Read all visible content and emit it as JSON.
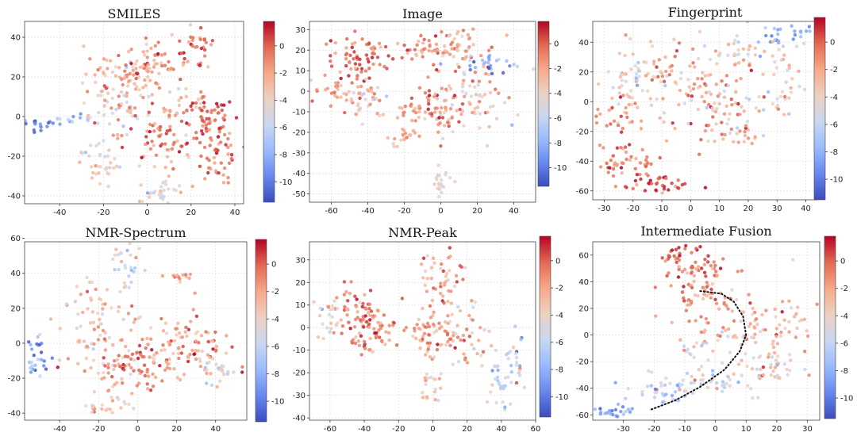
{
  "figure": {
    "colormap": [
      "#3b4cc0",
      "#6788ee",
      "#9abbff",
      "#c9d7f0",
      "#edd1c2",
      "#f7a889",
      "#e26952",
      "#b40426"
    ]
  },
  "chart_data": [
    {
      "type": "scatter",
      "title": "SMILES",
      "xticks": [
        -40,
        -20,
        0,
        20,
        40
      ],
      "yticks": [
        -40,
        -20,
        0,
        20,
        40
      ],
      "xlim": [
        -56,
        44
      ],
      "ylim": [
        -44,
        48
      ],
      "colorbar": {
        "min": -11.5,
        "max": 1.8,
        "ticks": [
          0,
          -2,
          -4,
          -6,
          -8,
          -10
        ]
      },
      "clusters": [
        {
          "cx": -50,
          "cy": -4,
          "sx": 5,
          "sy": 1.5,
          "n": 20,
          "c": -9.5,
          "cs": 1.2
        },
        {
          "cx": -33,
          "cy": -1,
          "sx": 4,
          "sy": 1.5,
          "n": 12,
          "c": -7.5,
          "cs": 1.2
        },
        {
          "cx": -15,
          "cy": 5,
          "sx": 8,
          "sy": 7,
          "n": 50,
          "c": -3.5,
          "cs": 2
        },
        {
          "cx": -10,
          "cy": 22,
          "sx": 9,
          "sy": 6,
          "n": 60,
          "c": -2,
          "cs": 1.5
        },
        {
          "cx": 5,
          "cy": 25,
          "sx": 7,
          "sy": 7,
          "n": 55,
          "c": -1.5,
          "cs": 1.5
        },
        {
          "cx": 22,
          "cy": 35,
          "sx": 4,
          "sy": 5,
          "n": 30,
          "c": -0.5,
          "cs": 1.2
        },
        {
          "cx": 28,
          "cy": -2,
          "sx": 6,
          "sy": 6,
          "n": 60,
          "c": 0,
          "cs": 1.2
        },
        {
          "cx": 32,
          "cy": -20,
          "sx": 5,
          "sy": 6,
          "n": 40,
          "c": -0.5,
          "cs": 1.2
        },
        {
          "cx": 5,
          "cy": -10,
          "sx": 8,
          "sy": 9,
          "n": 70,
          "c": -1,
          "cs": 1.5
        },
        {
          "cx": -20,
          "cy": -25,
          "sx": 6,
          "sy": 6,
          "n": 35,
          "c": -4,
          "cs": 1.8
        },
        {
          "cx": 5,
          "cy": -38,
          "sx": 6,
          "sy": 3,
          "n": 30,
          "c": -4.5,
          "cs": 1.5
        },
        {
          "cx": 20,
          "cy": 10,
          "sx": 5,
          "sy": 5,
          "n": 25,
          "c": -2,
          "cs": 1.5
        }
      ],
      "curve": []
    },
    {
      "type": "scatter",
      "title": "Image",
      "xticks": [
        -60,
        -40,
        -20,
        0,
        20,
        40
      ],
      "yticks": [
        -50,
        -40,
        -30,
        -20,
        -10,
        0,
        10,
        20,
        30
      ],
      "xlim": [
        -72,
        52
      ],
      "ylim": [
        -54,
        34
      ],
      "colorbar": {
        "min": -11.5,
        "max": 1.8,
        "ticks": [
          0,
          -2,
          -4,
          -6,
          -8,
          -10
        ]
      },
      "clusters": [
        {
          "cx": -45,
          "cy": 15,
          "sx": 8,
          "sy": 6,
          "n": 70,
          "c": -0.5,
          "cs": 1.2
        },
        {
          "cx": -55,
          "cy": 0,
          "sx": 10,
          "sy": 5,
          "n": 45,
          "c": -2,
          "cs": 1.5
        },
        {
          "cx": -40,
          "cy": -5,
          "sx": 5,
          "sy": 5,
          "n": 25,
          "c": -3.5,
          "cs": 1.5
        },
        {
          "cx": -12,
          "cy": 22,
          "sx": 6,
          "sy": 3,
          "n": 25,
          "c": -1,
          "cs": 1.2
        },
        {
          "cx": 10,
          "cy": 20,
          "sx": 10,
          "sy": 6,
          "n": 60,
          "c": -2,
          "cs": 1.5
        },
        {
          "cx": 30,
          "cy": 13,
          "sx": 8,
          "sy": 2,
          "n": 25,
          "c": -8,
          "cs": 1.5
        },
        {
          "cx": 15,
          "cy": -5,
          "sx": 10,
          "sy": 9,
          "n": 70,
          "c": -3,
          "cs": 1.8
        },
        {
          "cx": 0,
          "cy": -10,
          "sx": 6,
          "sy": 7,
          "n": 45,
          "c": -1,
          "cs": 1.5
        },
        {
          "cx": -15,
          "cy": -10,
          "sx": 4,
          "sy": 4,
          "n": 20,
          "c": -2,
          "cs": 1.5
        },
        {
          "cx": 0,
          "cy": -45,
          "sx": 3,
          "sy": 3,
          "n": 22,
          "c": -4.5,
          "cs": 1
        },
        {
          "cx": -20,
          "cy": -22,
          "sx": 4,
          "sy": 4,
          "n": 18,
          "c": -2,
          "cs": 1.5
        }
      ],
      "curve": []
    },
    {
      "type": "scatter",
      "title": "Fingerprint",
      "xticks": [
        -30,
        -20,
        -10,
        0,
        10,
        20,
        30,
        40
      ],
      "yticks": [
        -60,
        -40,
        -20,
        0,
        20,
        40
      ],
      "xlim": [
        -34,
        44
      ],
      "ylim": [
        -66,
        54
      ],
      "colorbar": {
        "min": -11.5,
        "max": 1.8,
        "ticks": [
          0,
          -2,
          -4,
          -6,
          -8,
          -10
        ]
      },
      "clusters": [
        {
          "cx": 30,
          "cy": 45,
          "sx": 6,
          "sy": 4,
          "n": 30,
          "c": -8,
          "cs": 1.5
        },
        {
          "cx": -22,
          "cy": -40,
          "sx": 6,
          "sy": 6,
          "n": 50,
          "c": -0.5,
          "cs": 1.2
        },
        {
          "cx": -12,
          "cy": -57,
          "sx": 6,
          "sy": 3,
          "n": 35,
          "c": 0,
          "cs": 1.2
        },
        {
          "cx": -5,
          "cy": 15,
          "sx": 10,
          "sy": 12,
          "n": 80,
          "c": -2.5,
          "cs": 2
        },
        {
          "cx": 12,
          "cy": -10,
          "sx": 8,
          "sy": 15,
          "n": 70,
          "c": -2,
          "cs": 2
        },
        {
          "cx": 20,
          "cy": 30,
          "sx": 8,
          "sy": 8,
          "n": 45,
          "c": -3,
          "cs": 1.8
        },
        {
          "cx": -20,
          "cy": 20,
          "sx": 5,
          "sy": 10,
          "n": 35,
          "c": -4,
          "cs": 1.8
        },
        {
          "cx": -25,
          "cy": -10,
          "sx": 5,
          "sy": 10,
          "n": 30,
          "c": -1.5,
          "cs": 1.5
        },
        {
          "cx": 30,
          "cy": 5,
          "sx": 6,
          "sy": 10,
          "n": 30,
          "c": -4,
          "cs": 1.8
        }
      ],
      "curve": []
    },
    {
      "type": "scatter",
      "title": "NMR-Spectrum",
      "xticks": [
        -40,
        -20,
        0,
        20,
        40
      ],
      "yticks": [
        -40,
        -20,
        0,
        20,
        40,
        60
      ],
      "xlim": [
        -58,
        56
      ],
      "ylim": [
        -44,
        58
      ],
      "colorbar": {
        "min": -11.5,
        "max": 1.8,
        "ticks": [
          0,
          -2,
          -4,
          -6,
          -8,
          -10
        ]
      },
      "clusters": [
        {
          "cx": -52,
          "cy": -8,
          "sx": 3,
          "sy": 7,
          "n": 28,
          "c": -8.5,
          "cs": 1.5
        },
        {
          "cx": -20,
          "cy": 10,
          "sx": 10,
          "sy": 12,
          "n": 80,
          "c": -3,
          "cs": 2
        },
        {
          "cx": 0,
          "cy": -15,
          "sx": 12,
          "sy": 8,
          "n": 90,
          "c": -1.5,
          "cs": 1.8
        },
        {
          "cx": 25,
          "cy": 0,
          "sx": 12,
          "sy": 8,
          "n": 80,
          "c": -1.5,
          "cs": 1.8
        },
        {
          "cx": -5,
          "cy": 45,
          "sx": 4,
          "sy": 6,
          "n": 25,
          "c": -5,
          "cs": 1.8
        },
        {
          "cx": 22,
          "cy": 38,
          "sx": 3,
          "sy": 2,
          "n": 12,
          "c": -1.5,
          "cs": 1
        },
        {
          "cx": -15,
          "cy": -35,
          "sx": 6,
          "sy": 4,
          "n": 25,
          "c": -3,
          "cs": 1.8
        },
        {
          "cx": 40,
          "cy": -15,
          "sx": 5,
          "sy": 5,
          "n": 25,
          "c": -4.5,
          "cs": 1.8
        }
      ],
      "curve": []
    },
    {
      "type": "scatter",
      "title": "NMR-Peak",
      "xticks": [
        -60,
        -40,
        -20,
        0,
        20,
        40,
        60
      ],
      "yticks": [
        -40,
        -30,
        -20,
        -10,
        0,
        10,
        20,
        30
      ],
      "xlim": [
        -72,
        60
      ],
      "ylim": [
        -41,
        38
      ],
      "colorbar": {
        "min": -11.5,
        "max": 1.8,
        "ticks": [
          0,
          -2,
          -4,
          -6,
          -8,
          -10
        ]
      },
      "clusters": [
        {
          "cx": -45,
          "cy": 8,
          "sx": 6,
          "sy": 5,
          "n": 45,
          "c": -0.5,
          "cs": 1.2
        },
        {
          "cx": -35,
          "cy": 0,
          "sx": 8,
          "sy": 5,
          "n": 50,
          "c": -1,
          "cs": 1.5
        },
        {
          "cx": -60,
          "cy": 5,
          "sx": 4,
          "sy": 5,
          "n": 25,
          "c": -4,
          "cs": 1.5
        },
        {
          "cx": 5,
          "cy": 20,
          "sx": 8,
          "sy": 8,
          "n": 55,
          "c": -2,
          "cs": 1.8
        },
        {
          "cx": 15,
          "cy": -5,
          "sx": 12,
          "sy": 6,
          "n": 60,
          "c": -2,
          "cs": 1.8
        },
        {
          "cx": -5,
          "cy": -5,
          "sx": 6,
          "sy": 6,
          "n": 35,
          "c": -1.5,
          "cs": 1.5
        },
        {
          "cx": 0,
          "cy": -25,
          "sx": 4,
          "sy": 4,
          "n": 20,
          "c": -4,
          "cs": 1.8
        },
        {
          "cx": 40,
          "cy": -25,
          "sx": 3,
          "sy": 7,
          "n": 30,
          "c": -6,
          "cs": 2.2
        },
        {
          "cx": 50,
          "cy": -15,
          "sx": 3,
          "sy": 6,
          "n": 20,
          "c": -6,
          "cs": 2.2
        },
        {
          "cx": -40,
          "cy": -10,
          "sx": 3,
          "sy": 2,
          "n": 8,
          "c": -1,
          "cs": 1
        }
      ],
      "curve": []
    },
    {
      "type": "scatter",
      "title": "Intermediate Fusion",
      "xticks": [
        -30,
        -20,
        -10,
        0,
        10,
        20,
        30
      ],
      "yticks": [
        -60,
        -40,
        -20,
        0,
        20,
        40,
        60
      ],
      "xlim": [
        -40,
        34
      ],
      "ylim": [
        -64,
        70
      ],
      "colorbar": {
        "min": -11.5,
        "max": 1.8,
        "ticks": [
          0,
          -2,
          -4,
          -6,
          -8,
          -10
        ]
      },
      "clusters": [
        {
          "cx": -12,
          "cy": 60,
          "sx": 3,
          "sy": 3,
          "n": 25,
          "c": 0.5,
          "cs": 0.8
        },
        {
          "cx": -5,
          "cy": 50,
          "sx": 6,
          "sy": 4,
          "n": 35,
          "c": -0.5,
          "cs": 1.2
        },
        {
          "cx": -5,
          "cy": 30,
          "sx": 6,
          "sy": 8,
          "n": 50,
          "c": -1.5,
          "cs": 1.5
        },
        {
          "cx": 10,
          "cy": 5,
          "sx": 8,
          "sy": 12,
          "n": 70,
          "c": -2.5,
          "cs": 1.8
        },
        {
          "cx": 15,
          "cy": -25,
          "sx": 7,
          "sy": 8,
          "n": 50,
          "c": -3.5,
          "cs": 1.8
        },
        {
          "cx": -5,
          "cy": -35,
          "sx": 7,
          "sy": 6,
          "n": 45,
          "c": -5,
          "cs": 1.8
        },
        {
          "cx": -20,
          "cy": -45,
          "sx": 6,
          "sy": 4,
          "n": 30,
          "c": -7,
          "cs": 1.5
        },
        {
          "cx": -32,
          "cy": -58,
          "sx": 3,
          "sy": 2,
          "n": 20,
          "c": -9,
          "cs": 1.2
        },
        {
          "cx": -8,
          "cy": -10,
          "sx": 3,
          "sy": 3,
          "n": 12,
          "c": -4.5,
          "cs": 1.5
        },
        {
          "cx": 25,
          "cy": 10,
          "sx": 4,
          "sy": 6,
          "n": 20,
          "c": -2.5,
          "cs": 1.5
        }
      ],
      "curve": [
        [
          -5,
          33
        ],
        [
          2,
          31
        ],
        [
          6,
          25
        ],
        [
          9,
          14
        ],
        [
          10,
          0
        ],
        [
          8,
          -12
        ],
        [
          3,
          -26
        ],
        [
          -5,
          -39
        ],
        [
          -13,
          -49
        ],
        [
          -21,
          -56
        ]
      ]
    }
  ]
}
